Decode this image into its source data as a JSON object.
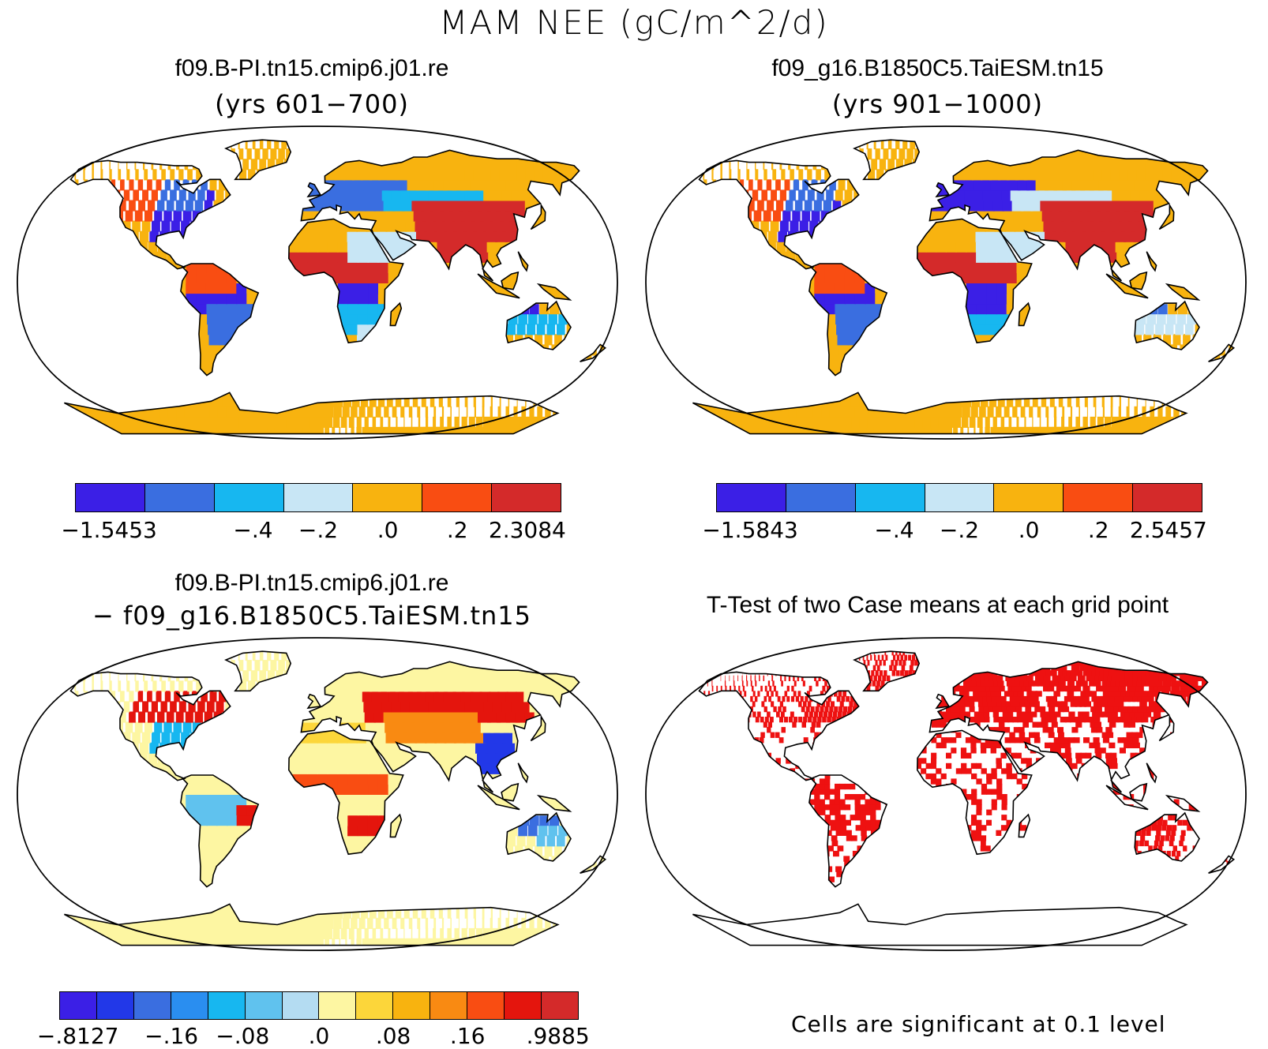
{
  "title": "MAM NEE (gC/m^2/d)",
  "panels": [
    {
      "id": "case1",
      "title": "f09.B-PI.tn15.cmip6.j01.re",
      "subtitle": "(yrs 601−700)",
      "colorbar": {
        "colors": [
          "#3b1fe6",
          "#3a6ee0",
          "#17b7f0",
          "#c8e6f5",
          "#f8b30f",
          "#f94d12",
          "#d42a2a"
        ],
        "labels": [
          "−1.5453",
          "−.4",
          "−.2",
          ".0",
          ".2",
          "2.3084"
        ]
      }
    },
    {
      "id": "case2",
      "title": "f09_g16.B1850C5.TaiESM.tn15",
      "subtitle": "(yrs 901−1000)",
      "colorbar": {
        "colors": [
          "#3b1fe6",
          "#3a6ee0",
          "#17b7f0",
          "#c8e6f5",
          "#f8b30f",
          "#f94d12",
          "#d42a2a"
        ],
        "labels": [
          "−1.5843",
          "−.4",
          "−.2",
          ".0",
          ".2",
          "2.5457"
        ]
      }
    },
    {
      "id": "diff",
      "title": "f09.B-PI.tn15.cmip6.j01.re",
      "subtitle": "− f09_g16.B1850C5.TaiESM.tn15",
      "colorbar": {
        "colors": [
          "#3b1fe6",
          "#2238e8",
          "#3a6ee0",
          "#2a8ef0",
          "#17b7f0",
          "#60c2ee",
          "#b4dcf2",
          "#fdf6a2",
          "#fcd63a",
          "#f8b30f",
          "#f98a12",
          "#f94d12",
          "#e4150d",
          "#d42a2a"
        ],
        "labels": [
          "−.8127",
          "−.16",
          "−.08",
          ".0",
          ".08",
          ".16",
          ".9885"
        ]
      }
    },
    {
      "id": "ttest",
      "title": "T-Test of two Case means at each grid point",
      "note": "Cells are significant at 0.1 level"
    }
  ]
}
